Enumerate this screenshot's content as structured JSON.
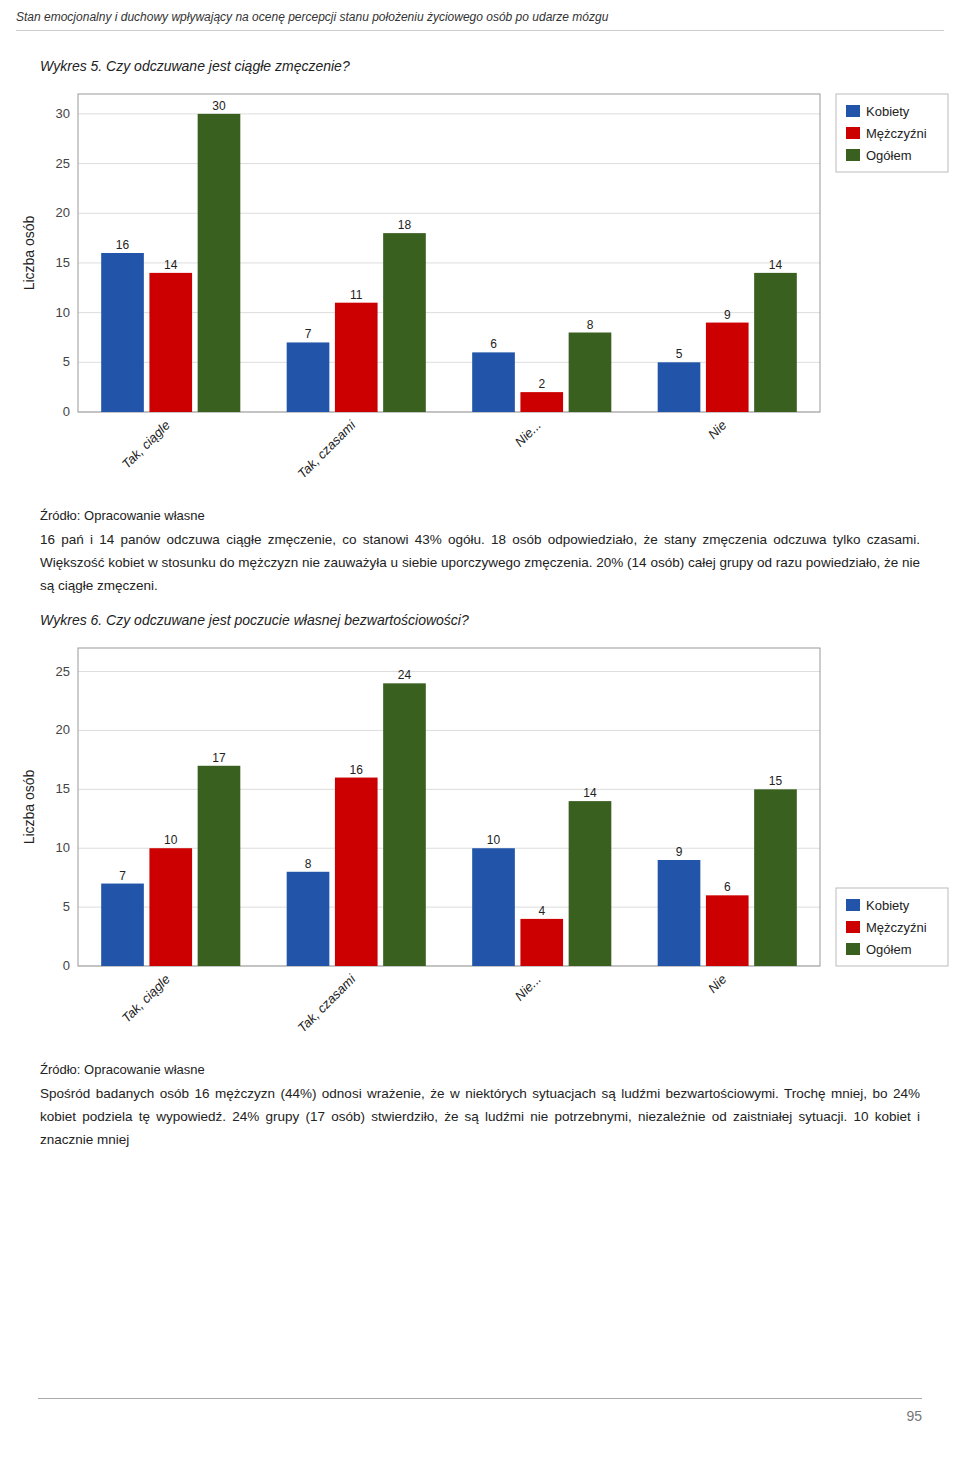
{
  "page": {
    "title": "Stan emocjonalny i duchowy wpływający na ocenę percepcji stanu położeniu życiowego osób po udarze mózgu",
    "page_number": "95"
  },
  "chart_data": [
    {
      "type": "bar",
      "title": "Wykres 5. Czy odczuwane jest ciągłe zmęczenie?",
      "categories": [
        "Tak, ciągle",
        "Tak, czasami",
        "Nie...",
        "Nie"
      ],
      "series": [
        {
          "name": "Kobiety",
          "color": "#2255AA",
          "values": [
            16,
            7,
            6,
            5
          ]
        },
        {
          "name": "Mężczyźni",
          "color": "#CC0000",
          "values": [
            14,
            11,
            2,
            9
          ]
        },
        {
          "name": "Ogółem",
          "color": "#3A6020",
          "values": [
            30,
            18,
            8,
            14
          ]
        }
      ],
      "ylim": [
        0,
        32
      ],
      "yticks": [
        0,
        5,
        10,
        15,
        20,
        25,
        30
      ],
      "y_label": "Liczba osób",
      "grid": true,
      "legend": "upper right",
      "data_labels": true,
      "annotations": [
        "Źródło: Opracowanie własne",
        "16 pań i 14 panów odczuwa ciągłe zmęczenie, co stanowi 43% ogółu. 18 osób odpowiedziało, że stany zmęczenia odczuwa tylko czasami. Większość kobiet w stosunku do mężczyzn nie zauważyła u siebie uporczywego zmęczenia. 20% (14 osób) całej grupy od razu powiedziało, że nie są ciągłe zmęczeni."
      ]
    },
    {
      "type": "bar",
      "title": "Wykres 6. Czy odczuwane jest poczucie własnej bezwartościowości?",
      "categories": [
        "Tak, ciągle",
        "Tak, czasami",
        "Nie...",
        "Nie"
      ],
      "series": [
        {
          "name": "Kobiety",
          "color": "#2255AA",
          "values": [
            7,
            8,
            10,
            9
          ]
        },
        {
          "name": "Mężczyźni",
          "color": "#CC0000",
          "values": [
            10,
            16,
            4,
            6
          ]
        },
        {
          "name": "Ogółem",
          "color": "#3A6020",
          "values": [
            17,
            24,
            14,
            15
          ]
        }
      ],
      "ylim": [
        0,
        27
      ],
      "yticks": [
        0,
        5,
        10,
        15,
        20,
        25
      ],
      "y_label": "Liczba osób",
      "grid": true,
      "legend": "lower right",
      "data_labels": true,
      "annotations": [
        "Źródło: Opracowanie własne",
        "Spośród badanych osób 16 mężczyzn (44%) odnosi wrażenie, że w niektórych sytuacjach są ludźmi bezwartościowymi. Trochę mniej, bo 24% kobiet podziela tę wypowiedź. 24% grupy (17 osób) stwierdziło, że są ludźmi nie potrzebnymi, niezależnie od zaistniałej sytuacji. 10 kobiet i znacznie mniej"
      ]
    }
  ]
}
